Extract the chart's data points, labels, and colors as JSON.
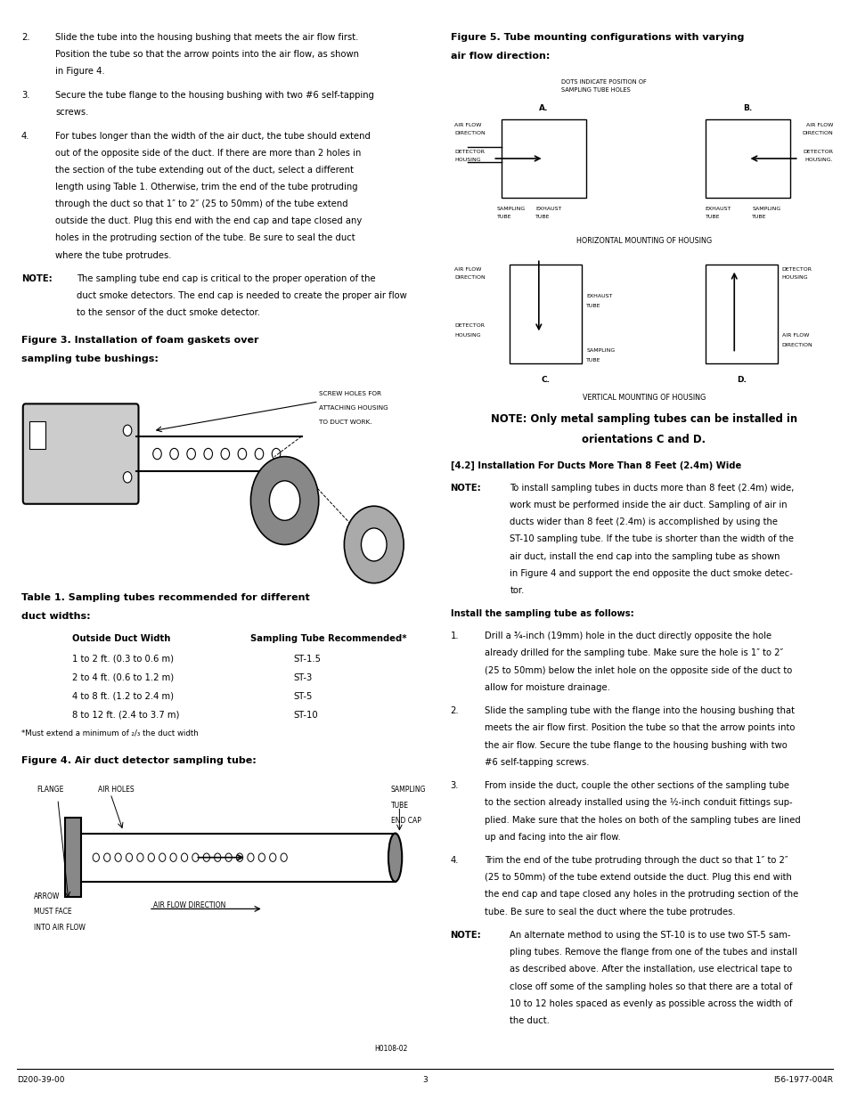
{
  "background_color": "#ffffff",
  "footer_left": "D200-39-00",
  "footer_center": "3",
  "footer_right": "I56-1977-004R",
  "body_fontsize": 7.2,
  "bold_fontsize": 8.0,
  "small_fontsize": 6.2
}
